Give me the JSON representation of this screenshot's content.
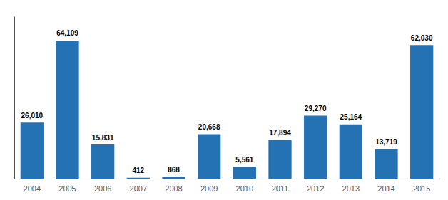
{
  "chart_data": {
    "type": "bar",
    "categories": [
      "2004",
      "2005",
      "2006",
      "2007",
      "2008",
      "2009",
      "2010",
      "2011",
      "2012",
      "2013",
      "2014",
      "2015"
    ],
    "values": [
      26010,
      64109,
      15831,
      412,
      868,
      20668,
      5561,
      17894,
      29270,
      25164,
      13719,
      62030
    ],
    "value_labels": [
      "26,010",
      "64,109",
      "15,831",
      "412",
      "868",
      "20,668",
      "5,561",
      "17,894",
      "29,270",
      "25,164",
      "13,719",
      "62,030"
    ],
    "color": "#2472B4",
    "ylim": [
      0,
      75000
    ],
    "data_labels": true,
    "tick_labels": "x",
    "grid": false
  }
}
